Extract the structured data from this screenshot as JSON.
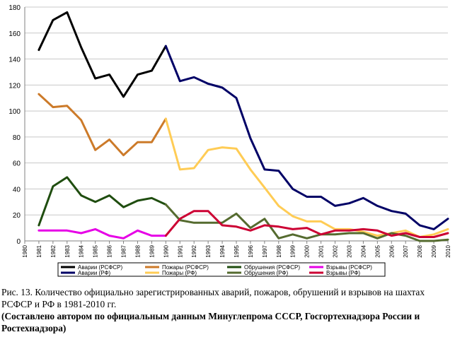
{
  "chart_data": {
    "type": "line",
    "title": "",
    "xlabel": "",
    "ylabel": "",
    "x": [
      1980,
      1981,
      1982,
      1983,
      1984,
      1985,
      1986,
      1987,
      1988,
      1989,
      1990,
      1991,
      1992,
      1993,
      1994,
      1995,
      1996,
      1997,
      1998,
      1999,
      2000,
      2001,
      2002,
      2003,
      2004,
      2005,
      2006,
      2007,
      2008,
      2009,
      2010
    ],
    "x_tick_labels": [
      "1980",
      "1981",
      "1982",
      "1983",
      "1984",
      "1985",
      "1986",
      "1987",
      "1988",
      "1989",
      "1990",
      "1991",
      "1992",
      "1993",
      "1994",
      "1995",
      "1996",
      "1997",
      "1998",
      "1999",
      "2000",
      "2001",
      "2002",
      "2003",
      "2004",
      "2005",
      "2006",
      "2007",
      "2008",
      "2009",
      "2010"
    ],
    "ylim": [
      0,
      180
    ],
    "y_tick_labels": [
      "0",
      "20",
      "40",
      "60",
      "80",
      "100",
      "120",
      "140",
      "160",
      "180"
    ],
    "grid": "horizontal",
    "legend_position": "bottom",
    "series": [
      {
        "name": "Аварии (РСФСР)",
        "color": "#000000",
        "x": [
          1981,
          1982,
          1983,
          1984,
          1985,
          1986,
          1987,
          1988,
          1989,
          1990
        ],
        "values": [
          147,
          170,
          176,
          149,
          125,
          128,
          111,
          128,
          131,
          150
        ]
      },
      {
        "name": "Пожары (РСФСР)",
        "color": "#cc7a29",
        "x": [
          1981,
          1982,
          1983,
          1984,
          1985,
          1986,
          1987,
          1988,
          1989,
          1990
        ],
        "values": [
          113,
          103,
          104,
          93,
          70,
          78,
          66,
          76,
          76,
          94
        ]
      },
      {
        "name": "Обрушения (РСФСР)",
        "color": "#1f4d0f",
        "x": [
          1981,
          1982,
          1983,
          1984,
          1985,
          1986,
          1987,
          1988,
          1989,
          1990
        ],
        "values": [
          12,
          42,
          49,
          35,
          30,
          35,
          26,
          31,
          33,
          28
        ]
      },
      {
        "name": "Взрывы (РСФСР)",
        "color": "#e600e6",
        "x": [
          1981,
          1982,
          1983,
          1984,
          1985,
          1986,
          1987,
          1988,
          1989,
          1990
        ],
        "values": [
          8,
          8,
          8,
          6,
          9,
          4,
          2,
          8,
          4,
          4
        ]
      },
      {
        "name": "Аварии (РФ)",
        "color": "#000066",
        "x": [
          1990,
          1991,
          1992,
          1993,
          1994,
          1995,
          1996,
          1997,
          1998,
          1999,
          2000,
          2001,
          2002,
          2003,
          2004,
          2005,
          2006,
          2007,
          2008,
          2009,
          2010
        ],
        "values": [
          150,
          123,
          126,
          121,
          118,
          110,
          79,
          55,
          54,
          40,
          34,
          34,
          27,
          29,
          33,
          27,
          23,
          21,
          12,
          9,
          17
        ]
      },
      {
        "name": "Пожары (РФ)",
        "color": "#ffcc55",
        "x": [
          1990,
          1991,
          1992,
          1993,
          1994,
          1995,
          1996,
          1997,
          1998,
          1999,
          2000,
          2001,
          2002,
          2003,
          2004,
          2005,
          2006,
          2007,
          2008,
          2009,
          2010
        ],
        "values": [
          94,
          55,
          56,
          70,
          72,
          71,
          55,
          41,
          27,
          19,
          15,
          15,
          9,
          9,
          7,
          4,
          6,
          8,
          3,
          5,
          9
        ]
      },
      {
        "name": "Обрушения (РФ)",
        "color": "#556b2f",
        "x": [
          1990,
          1991,
          1992,
          1993,
          1994,
          1995,
          1996,
          1997,
          1998,
          1999,
          2000,
          2001,
          2002,
          2003,
          2004,
          2005,
          2006,
          2007,
          2008,
          2009,
          2010
        ],
        "values": [
          28,
          16,
          14,
          14,
          14,
          21,
          10,
          17,
          2,
          5,
          2,
          5,
          5,
          6,
          6,
          2,
          6,
          4,
          0,
          0,
          1
        ]
      },
      {
        "name": "Взрывы (РФ)",
        "color": "#cc0033",
        "x": [
          1990,
          1991,
          1992,
          1993,
          1994,
          1995,
          1996,
          1997,
          1998,
          1999,
          2000,
          2001,
          2002,
          2003,
          2004,
          2005,
          2006,
          2007,
          2008,
          2009,
          2010
        ],
        "values": [
          4,
          17,
          23,
          23,
          12,
          11,
          8,
          12,
          11,
          9,
          10,
          5,
          8,
          8,
          9,
          8,
          4,
          6,
          3,
          3,
          6
        ]
      }
    ]
  },
  "caption": {
    "main": "Рис. 13. Количество официально зарегистрированных аварий, пожаров, обрушений и взрывов на шахтах РСФСР и РФ в 1981-2010 гг.",
    "note": "(Составлено автором по официальным данным Минуглепрома СССР, Госгортехнадзора России и Ростехнадзора)"
  }
}
